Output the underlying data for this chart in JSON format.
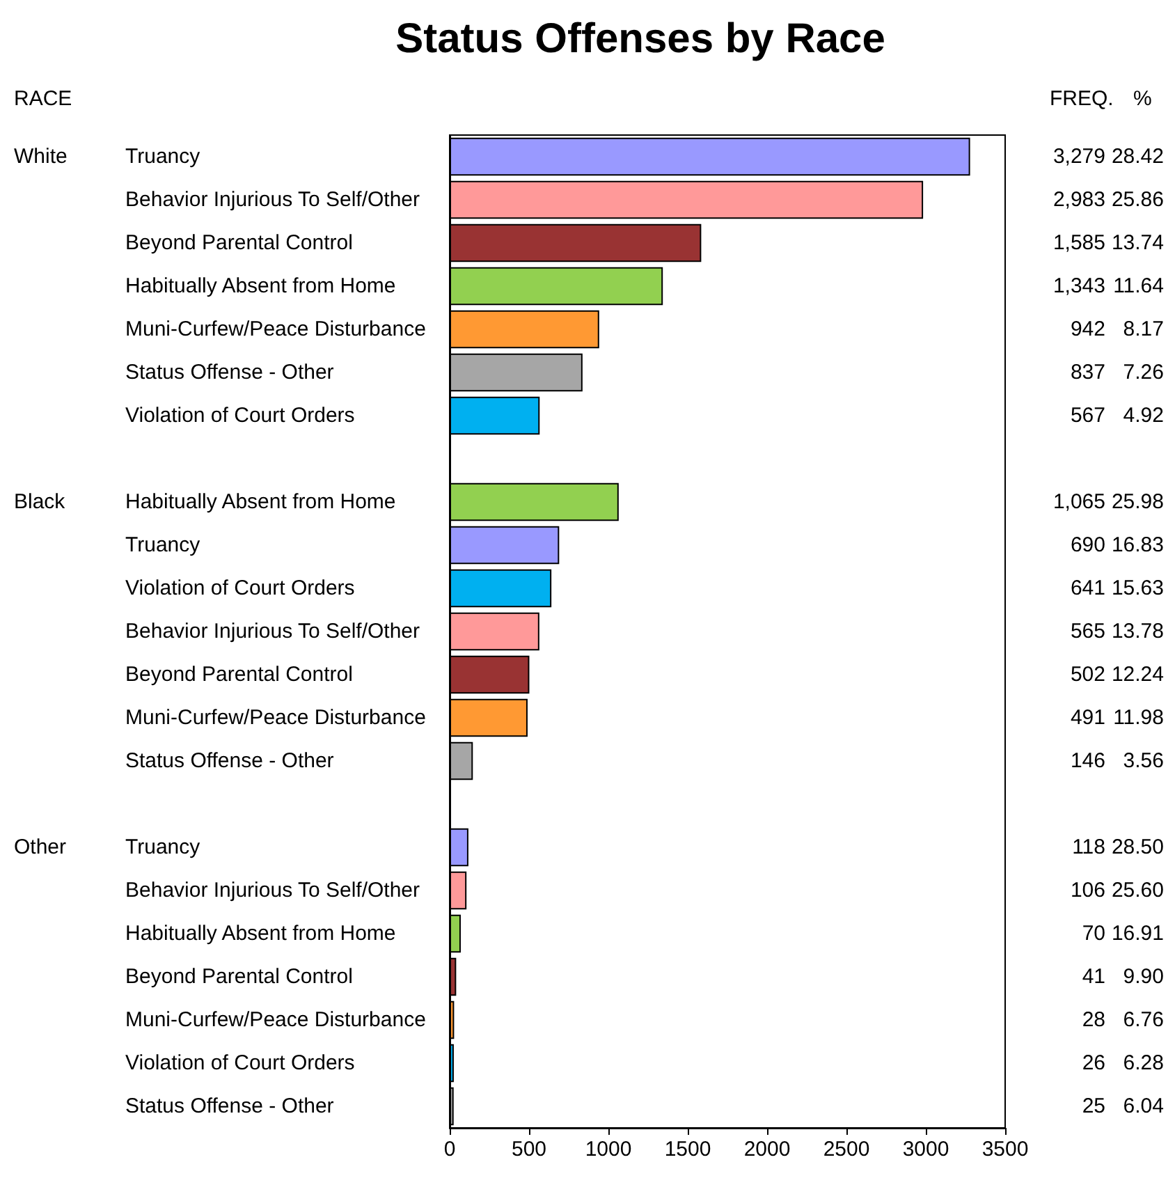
{
  "chart_data": {
    "type": "bar",
    "orientation": "horizontal",
    "title": "Status Offenses by Race",
    "categories": [
      "Truancy",
      "Behavior Injurious To Self/Other",
      "Beyond Parental Control",
      "Habitually Absent from Home",
      "Muni-Curfew/Peace Disturbance",
      "Status Offense - Other",
      "Violation of Court Orders",
      null,
      "Habitually Absent from Home",
      "Truancy",
      "Violation of Court Orders",
      "Behavior Injurious To Self/Other",
      "Beyond Parental Control",
      "Muni-Curfew/Peace Disturbance",
      "Status Offense - Other",
      null,
      "Truancy",
      "Behavior Injurious To Self/Other",
      "Habitually Absent from Home",
      "Beyond Parental Control",
      "Muni-Curfew/Peace Disturbance",
      "Violation of Court Orders",
      "Status Offense - Other"
    ],
    "values": [
      3279,
      2983,
      1585,
      1343,
      942,
      837,
      567,
      null,
      1065,
      690,
      641,
      565,
      502,
      491,
      146,
      null,
      118,
      106,
      70,
      41,
      28,
      26,
      25
    ],
    "value_labels": [
      "3,279",
      "2,983",
      "1,585",
      "1,343",
      "942",
      "837",
      "567",
      null,
      "1,065",
      "690",
      "641",
      "565",
      "502",
      "491",
      "146",
      null,
      "118",
      "106",
      "70",
      "41",
      "28",
      "26",
      "25"
    ],
    "colors": [
      "#9999ff",
      "#ff9999",
      "#993333",
      "#92d050",
      "#ff9933",
      "#a6a6a6",
      "#00b0f0",
      null,
      "#92d050",
      "#9999ff",
      "#00b0f0",
      "#ff9999",
      "#993333",
      "#ff9933",
      "#a6a6a6",
      null,
      "#9999ff",
      "#ff9999",
      "#92d050",
      "#993333",
      "#ff9933",
      "#00b0f0",
      "#a6a6a6"
    ],
    "xlim": [
      0,
      3500
    ],
    "xticks": [
      0,
      500,
      1000,
      1500,
      2000,
      2500,
      3000,
      3500
    ],
    "grid": false,
    "annotations": [
      "RACE",
      "FREQ.",
      "%",
      "White",
      "Black",
      "Other",
      "28.42",
      "25.86",
      "13.74",
      "11.64",
      "8.17",
      "7.26",
      "4.92",
      "25.98",
      "16.83",
      "15.63",
      "13.78",
      "12.24",
      "11.98",
      "3.56",
      "28.50",
      "25.60",
      "16.91",
      "9.90",
      "6.76",
      "6.28",
      "6.04"
    ]
  }
}
